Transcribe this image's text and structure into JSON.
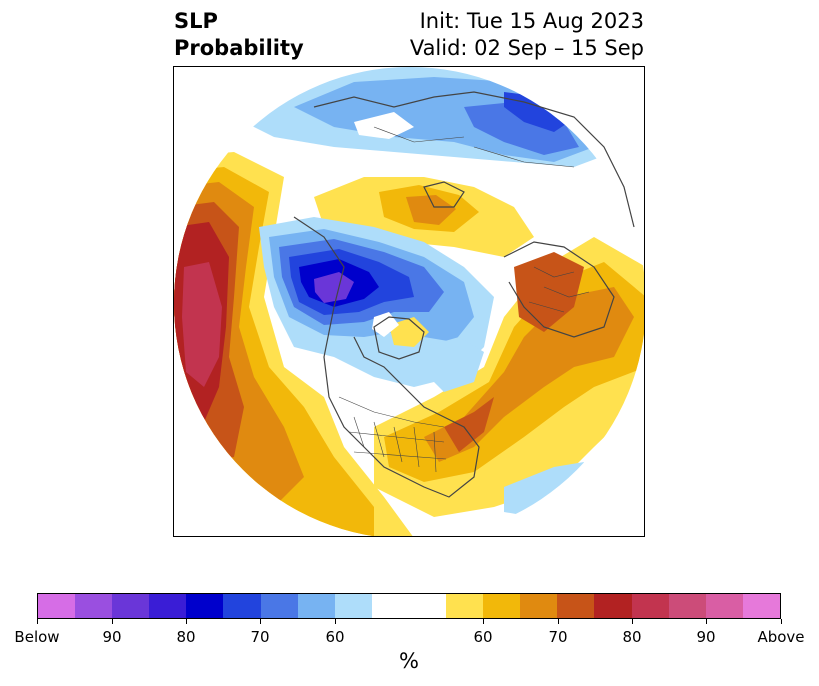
{
  "title": {
    "left_line1": "SLP",
    "left_line2": "Probability",
    "right_line1": "Init: Tue 15 Aug 2023",
    "right_line2": "Valid: 02 Sep – 15 Sep"
  },
  "colorbar": {
    "unit": "%",
    "colors": [
      "#d66de6",
      "#9a4fe0",
      "#6a36d8",
      "#3a1dd6",
      "#0000cc",
      "#2244dd",
      "#4a77e6",
      "#77b3f2",
      "#aeddfa",
      "#ffffff",
      "#ffffff",
      "#ffe14f",
      "#f2b80a",
      "#e08a10",
      "#c75418",
      "#b22222",
      "#c2344f",
      "#cc4c79",
      "#d95ea4",
      "#e679da"
    ],
    "tick_labels": [
      "Below",
      "90",
      "80",
      "70",
      "60",
      "60",
      "70",
      "80",
      "90",
      "Above"
    ]
  },
  "map": {
    "projection": "north-polar-stereographic",
    "field": "SLP probability",
    "colors": {
      "above_low": "#ffe14f",
      "above_mid": "#f2b80a",
      "above_60": "#e08a10",
      "above_70": "#c75418",
      "above_80": "#b22222",
      "above_90": "#c2344f",
      "below_low": "#aeddfa",
      "below_mid": "#77b3f2",
      "below_70": "#4a77e6",
      "below_80": "#2244dd",
      "below_90": "#0000cc",
      "below_max": "#6a36d8"
    }
  }
}
